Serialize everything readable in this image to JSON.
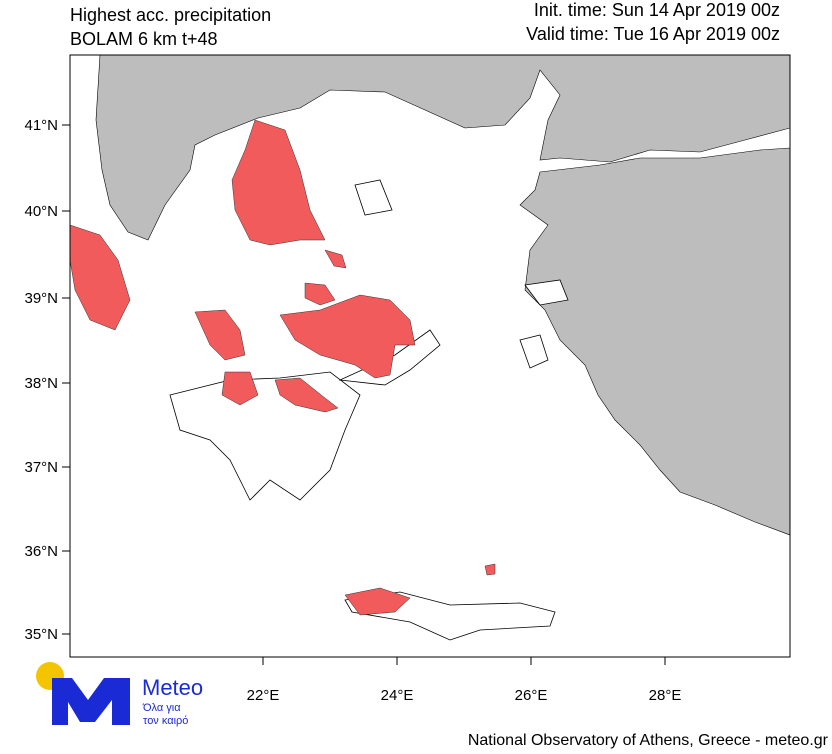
{
  "header": {
    "title_line1": "Highest acc. precipitation",
    "title_line2": "BOLAM 6 km t+48",
    "init_time": "Init. time: Sun 14 Apr 2019 00z",
    "valid_time": "Valid time: Tue 16 Apr 2019 00z"
  },
  "map": {
    "lat_labels": [
      "41°N",
      "40°N",
      "39°N",
      "38°N",
      "37°N",
      "36°N",
      "35°N"
    ],
    "lon_labels": [
      "22°E",
      "24°E",
      "26°E",
      "28°E"
    ]
  },
  "logo": {
    "name": "Meteo",
    "tagline_1": "Όλα για",
    "tagline_2": "τον καιρό"
  },
  "footer": "National Observatory of Athens, Greece - meteo.gr"
}
